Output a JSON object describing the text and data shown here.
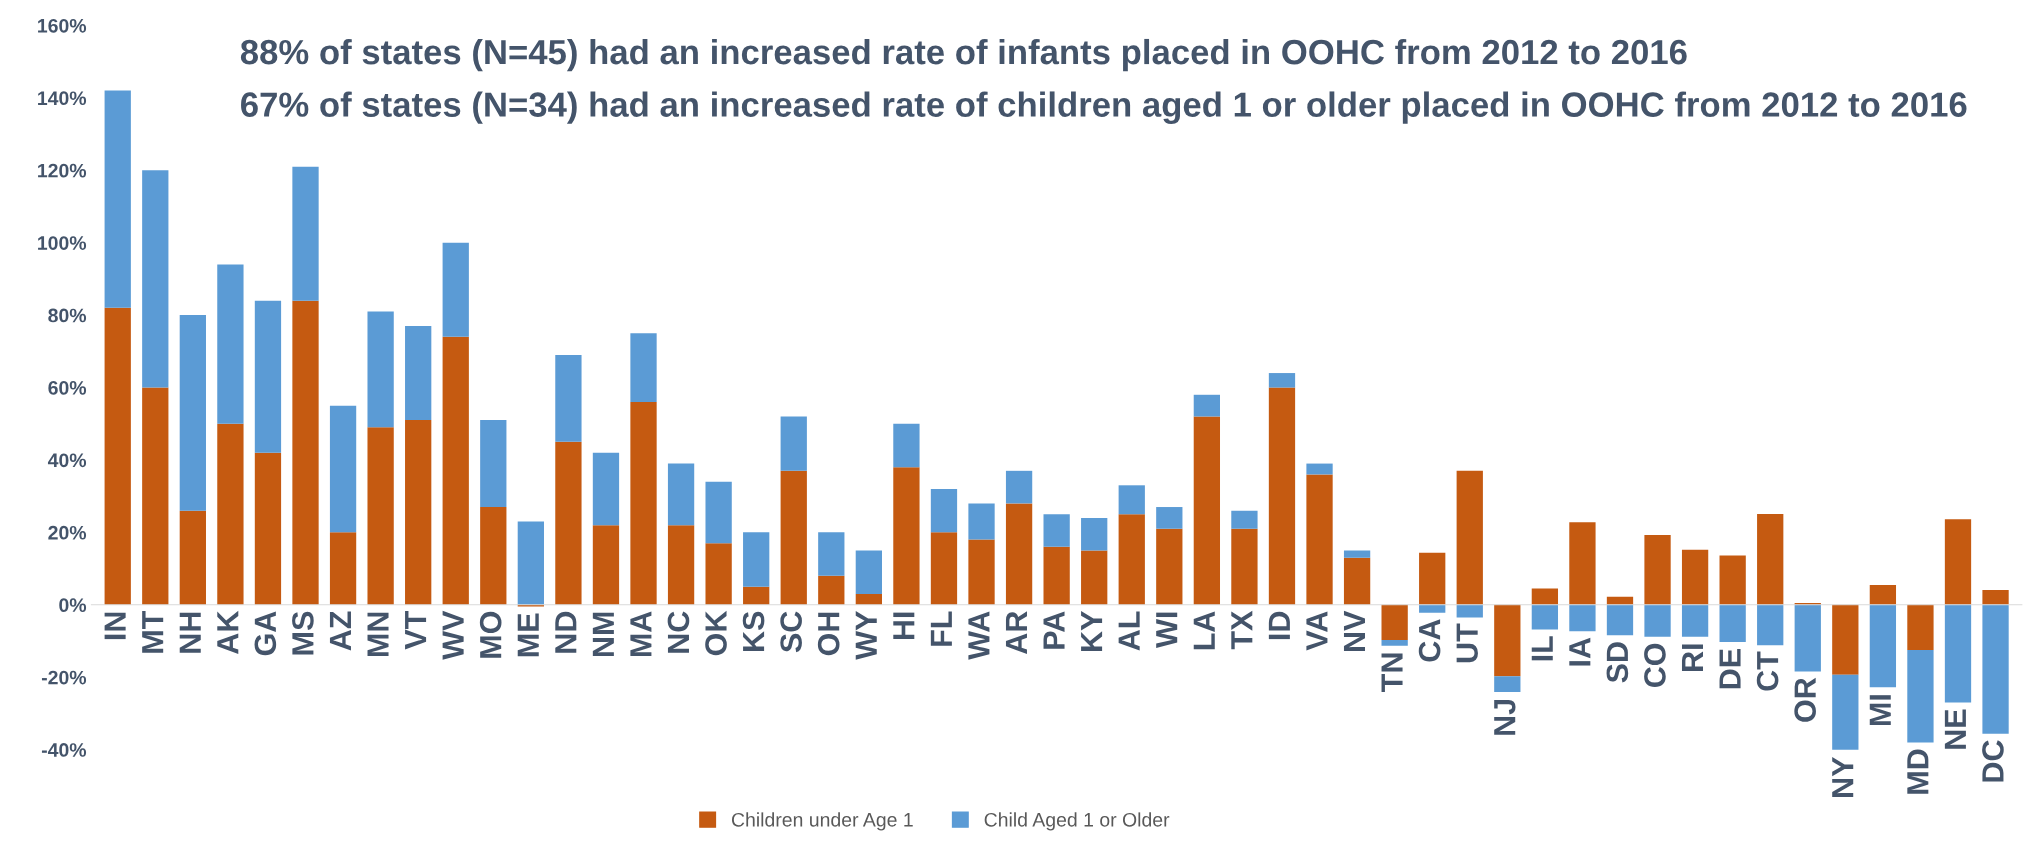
{
  "chart_data": {
    "type": "bar",
    "stacked": true,
    "categories": [
      "IN",
      "MT",
      "NH",
      "AK",
      "GA",
      "MS",
      "AZ",
      "MN",
      "VT",
      "WV",
      "MO",
      "ME",
      "ND",
      "NM",
      "MA",
      "NC",
      "OK",
      "KS",
      "SC",
      "OH",
      "WY",
      "HI",
      "FL",
      "WA",
      "AR",
      "PA",
      "KY",
      "AL",
      "WI",
      "LA",
      "TX",
      "ID",
      "VA",
      "NV",
      "TN",
      "CA",
      "UT",
      "NJ",
      "IL",
      "IA",
      "SD",
      "CO",
      "RI",
      "DE",
      "CT",
      "OR",
      "NY",
      "MI",
      "MD",
      "NE",
      "DC"
    ],
    "series": [
      {
        "name": "Children under Age 1",
        "color": "#c55a11",
        "values": [
          82,
          60,
          26,
          50,
          42,
          84,
          20,
          49,
          51,
          74,
          27,
          -0.5,
          45,
          22,
          56,
          22,
          17,
          5,
          37,
          8,
          3,
          38,
          20,
          18,
          28,
          16,
          15,
          25,
          21,
          52,
          21,
          60,
          36,
          13,
          -9.7,
          14.4,
          37,
          -19.7,
          4.5,
          22.8,
          2.2,
          19.3,
          15.2,
          13.6,
          25.1,
          0.5,
          -19.3,
          5.5,
          -12.5,
          23.6,
          4.1
        ]
      },
      {
        "name": "Child Aged 1 or Older",
        "color": "#5b9bd5",
        "values": [
          60,
          60,
          54,
          44,
          42,
          37,
          35,
          32,
          26,
          26,
          24,
          23,
          24,
          20,
          19,
          17,
          17,
          15,
          15,
          12,
          12,
          12,
          12,
          10,
          9,
          9,
          9,
          8,
          6,
          6,
          5,
          4,
          3,
          2,
          -1.6,
          -2.2,
          -3.5,
          -4.4,
          -6.8,
          -7.3,
          -8.4,
          -8.8,
          -8.8,
          -10.3,
          -11.2,
          -18.4,
          -21,
          -22.8,
          -25.5,
          -27,
          -35.6
        ]
      }
    ],
    "ylim": [
      -40,
      160
    ],
    "yticks": [
      {
        "value": -40,
        "label": "-40%"
      },
      {
        "value": -20,
        "label": "-20%"
      },
      {
        "value": 0,
        "label": "0%"
      },
      {
        "value": 20,
        "label": "20%"
      },
      {
        "value": 40,
        "label": "40%"
      },
      {
        "value": 60,
        "label": "60%"
      },
      {
        "value": 80,
        "label": "80%"
      },
      {
        "value": 100,
        "label": "100%"
      },
      {
        "value": 120,
        "label": "120%"
      },
      {
        "value": 140,
        "label": "140%"
      },
      {
        "value": 160,
        "label": "160%"
      }
    ],
    "annotations": [
      "88% of states (N=45) had an increased rate of infants placed in OOHC from 2012 to 2016",
      "67% of states (N=34) had an increased rate of children aged 1 or older placed in OOHC from 2012 to 2016"
    ],
    "legend": "bottom",
    "grid": false
  }
}
